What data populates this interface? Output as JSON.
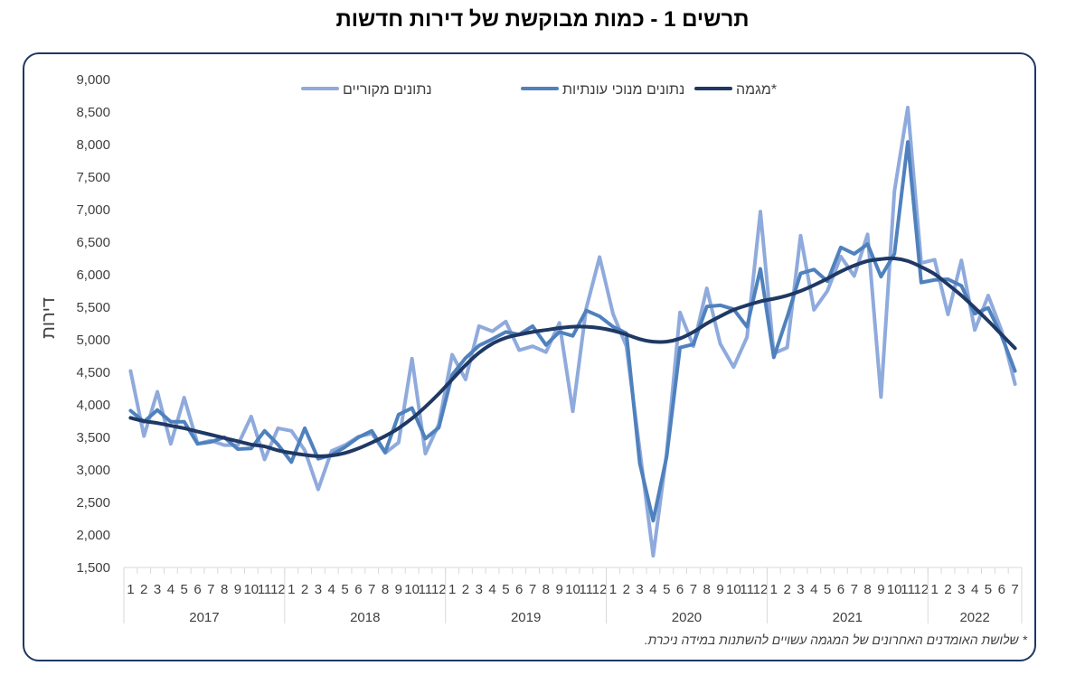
{
  "title": "תרשים 1 - כמות מבוקשת של דירות חדשות",
  "footnote": "* שלושת האומדנים האחרונים של המגמה עשויים להשתנות במידה ניכרת.",
  "chart_data": {
    "type": "line",
    "title": "תרשים 1 - כמות מבוקשת של דירות חדשות",
    "ylabel": "דירות",
    "xlabel": "",
    "ylim": [
      1500,
      9000
    ],
    "yticks": [
      1500,
      2000,
      2500,
      3000,
      3500,
      4000,
      4500,
      5000,
      5500,
      6000,
      6500,
      7000,
      7500,
      8000,
      8500,
      9000
    ],
    "ytick_labels": [
      "1,500",
      "2,000",
      "2,500",
      "3,000",
      "3,500",
      "4,000",
      "4,500",
      "5,000",
      "5,500",
      "6,000",
      "6,500",
      "7,000",
      "7,500",
      "8,000",
      "8,500",
      "9,000"
    ],
    "grid": false,
    "legend_position": "top",
    "years": [
      {
        "label": "2017",
        "months": [
          "1",
          "2",
          "3",
          "4",
          "5",
          "6",
          "7",
          "8",
          "9",
          "10",
          "11",
          "12"
        ]
      },
      {
        "label": "2018",
        "months": [
          "1",
          "2",
          "3",
          "4",
          "5",
          "6",
          "7",
          "8",
          "9",
          "10",
          "11",
          "12"
        ]
      },
      {
        "label": "2019",
        "months": [
          "1",
          "2",
          "3",
          "4",
          "5",
          "6",
          "7",
          "8",
          "9",
          "10",
          "11",
          "12"
        ]
      },
      {
        "label": "2020",
        "months": [
          "1",
          "2",
          "3",
          "4",
          "5",
          "6",
          "7",
          "8",
          "9",
          "10",
          "11",
          "12"
        ]
      },
      {
        "label": "2021",
        "months": [
          "1",
          "2",
          "3",
          "4",
          "5",
          "6",
          "7",
          "8",
          "9",
          "10",
          "11",
          "12"
        ]
      },
      {
        "label": "2022",
        "months": [
          "1",
          "2",
          "3",
          "4",
          "5",
          "6",
          "7"
        ]
      }
    ],
    "series": [
      {
        "name": "נתונים מקוריים",
        "color": "#8faadc",
        "width": 4,
        "values": [
          4520,
          3520,
          4200,
          3400,
          4110,
          3400,
          3450,
          3380,
          3380,
          3820,
          3160,
          3640,
          3600,
          3300,
          2700,
          3290,
          3380,
          3510,
          3560,
          3260,
          3420,
          4710,
          3250,
          3700,
          4770,
          4390,
          5210,
          5130,
          5280,
          4840,
          4900,
          4810,
          5260,
          3900,
          5480,
          6270,
          5400,
          4900,
          3300,
          1680,
          3250,
          5420,
          4900,
          5790,
          4940,
          4580,
          5040,
          6970,
          4790,
          4880,
          6600,
          5460,
          5750,
          6280,
          5980,
          6620,
          4120,
          7280,
          8570,
          6180,
          6230,
          5390,
          6220,
          5150,
          5680,
          5140,
          4320
        ]
      },
      {
        "name": "נתונים מנוכי עונתיות",
        "color": "#4f81bd",
        "width": 4,
        "values": [
          3910,
          3740,
          3920,
          3740,
          3740,
          3400,
          3430,
          3500,
          3320,
          3330,
          3600,
          3390,
          3120,
          3640,
          3170,
          3230,
          3350,
          3500,
          3600,
          3270,
          3850,
          3950,
          3480,
          3650,
          4460,
          4720,
          4910,
          5010,
          5120,
          5080,
          5210,
          4920,
          5120,
          5060,
          5450,
          5360,
          5200,
          5100,
          3100,
          2220,
          3200,
          4880,
          4930,
          5510,
          5530,
          5470,
          5200,
          6090,
          4730,
          5350,
          6020,
          6080,
          5900,
          6420,
          6320,
          6470,
          5970,
          6320,
          8040,
          5880,
          5920,
          5930,
          5830,
          5400,
          5490,
          5060,
          4520
        ]
      },
      {
        "name": "מגמה*",
        "color": "#1f3864",
        "width": 4,
        "values": [
          3800,
          3750,
          3720,
          3680,
          3640,
          3590,
          3540,
          3490,
          3440,
          3390,
          3360,
          3300,
          3260,
          3230,
          3210,
          3220,
          3260,
          3330,
          3420,
          3520,
          3640,
          3790,
          3970,
          4170,
          4390,
          4610,
          4800,
          4940,
          5030,
          5080,
          5120,
          5150,
          5180,
          5200,
          5200,
          5180,
          5140,
          5080,
          5010,
          4970,
          4970,
          5020,
          5120,
          5250,
          5360,
          5460,
          5530,
          5590,
          5630,
          5680,
          5750,
          5840,
          5940,
          6050,
          6140,
          6210,
          6240,
          6250,
          6210,
          6120,
          6010,
          5850,
          5680,
          5490,
          5290,
          5080,
          4870
        ]
      }
    ]
  }
}
